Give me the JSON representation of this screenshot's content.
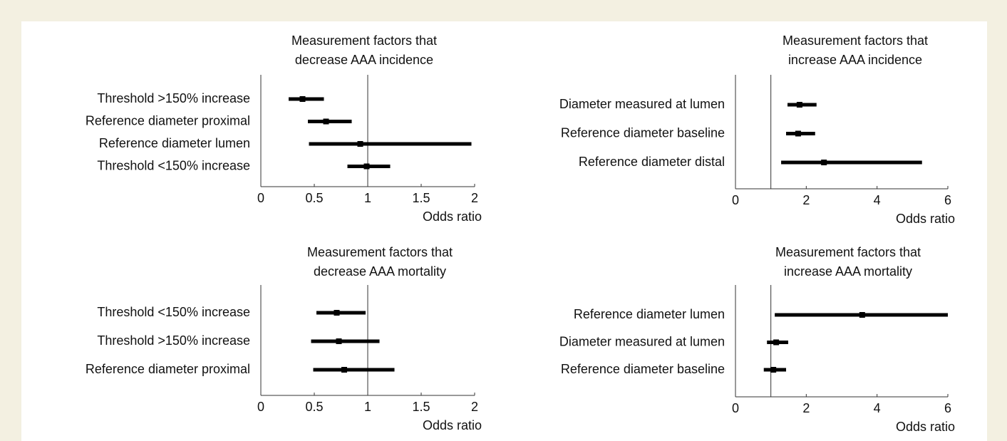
{
  "chart_data": [
    {
      "type": "forest",
      "title": [
        "Measurement factors that",
        "decrease AAA incidence"
      ],
      "xlabel": "Odds ratio",
      "categories": [
        "Threshold >150% increase",
        "Reference diameter proximal",
        "Reference diameter lumen",
        "Threshold <150% increase"
      ],
      "values": [
        0.39,
        0.61,
        0.93,
        0.99
      ],
      "lower": [
        0.26,
        0.44,
        0.45,
        0.81
      ],
      "upper": [
        0.59,
        0.85,
        1.97,
        1.21
      ],
      "reference_line": 1,
      "xlim": [
        0,
        2
      ],
      "xticks": [
        0,
        0.5,
        1,
        1.5,
        2
      ],
      "color": "#000000"
    },
    {
      "type": "forest",
      "title": [
        "Measurement factors that",
        "increase AAA incidence"
      ],
      "xlabel": "Odds ratio",
      "categories": [
        "Diameter measured at lumen",
        "Reference diameter baseline",
        "Reference diameter distal"
      ],
      "values": [
        1.81,
        1.77,
        2.5
      ],
      "lower": [
        1.47,
        1.43,
        1.29
      ],
      "upper": [
        2.29,
        2.25,
        5.27
      ],
      "reference_line": 1,
      "xlim": [
        0,
        6
      ],
      "xticks": [
        0,
        2,
        4,
        6
      ],
      "color": "#000000"
    },
    {
      "type": "forest",
      "title": [
        "Measurement factors that",
        "decrease AAA mortality"
      ],
      "xlabel": "Odds ratio",
      "categories": [
        "Threshold <150% increase",
        "Threshold >150% increase",
        "Reference diameter proximal"
      ],
      "values": [
        0.71,
        0.73,
        0.78
      ],
      "lower": [
        0.52,
        0.47,
        0.49
      ],
      "upper": [
        0.98,
        1.11,
        1.25
      ],
      "reference_line": 1,
      "xlim": [
        0,
        2
      ],
      "xticks": [
        0,
        0.5,
        1,
        1.5,
        2
      ],
      "color": "#000000"
    },
    {
      "type": "forest",
      "title": [
        "Measurement factors that",
        "increase AAA mortality"
      ],
      "xlabel": "Odds ratio",
      "categories": [
        "Reference diameter lumen",
        "Diameter measured at lumen",
        "Reference diameter baseline"
      ],
      "values": [
        3.58,
        1.15,
        1.07
      ],
      "lower": [
        1.11,
        0.89,
        0.8
      ],
      "upper": [
        6,
        1.49,
        1.43
      ],
      "reference_line": 1,
      "xlim": [
        0,
        6
      ],
      "xticks": [
        0,
        2,
        4,
        6
      ],
      "color": "#000000"
    }
  ]
}
